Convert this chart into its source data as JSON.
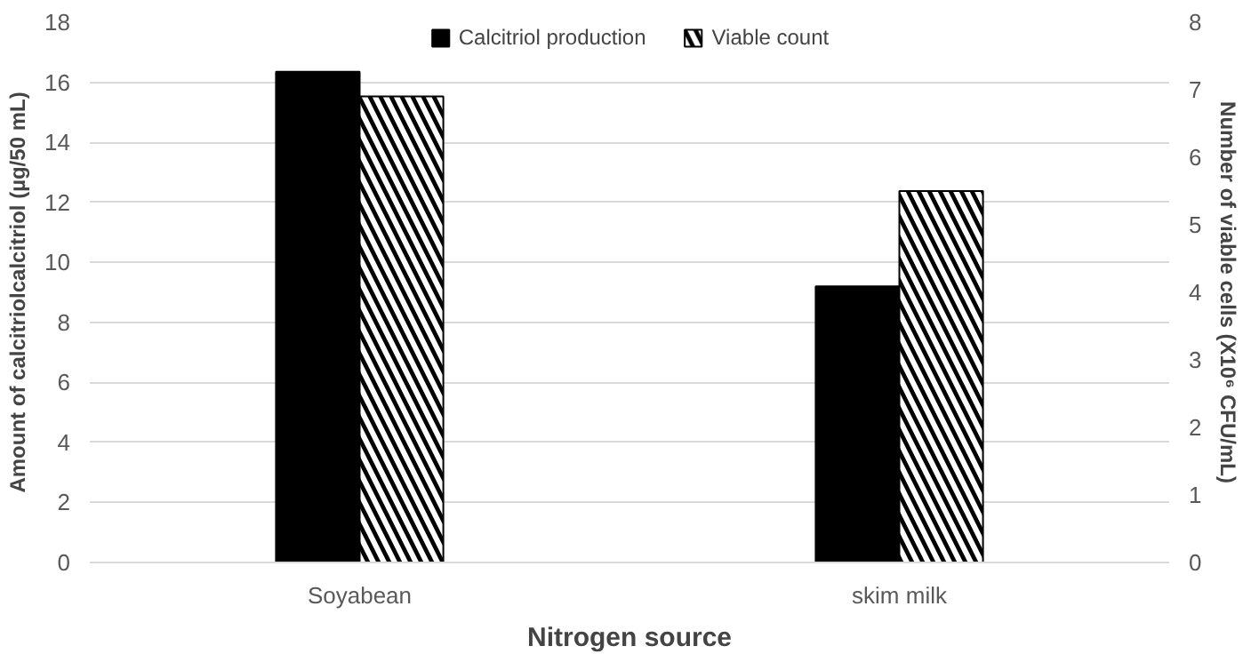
{
  "chart_data": {
    "type": "bar",
    "categories": [
      "Soyabean",
      "skim milk"
    ],
    "xlabel": "Nitrogen source",
    "ylabel": "Amount of calcitriolcalcitriol (µg/50 mL)",
    "y2label": "Number of viable cells (X10⁶ CFU/mL)",
    "series": [
      {
        "name": "Calcitriol production",
        "color": "#000000",
        "values": [
          16.35,
          9.2
        ]
      },
      {
        "name": "Viable count",
        "color": "#000000",
        "values": [
          6.9,
          5.5
        ],
        "axis": "y2"
      }
    ],
    "ylim": [
      0,
      18
    ],
    "yticks": [
      0,
      2,
      4,
      6,
      8,
      10,
      12,
      14,
      16,
      18
    ],
    "y2lim": [
      0,
      8
    ],
    "y2ticks": [
      0,
      1,
      2,
      3,
      4,
      5,
      6,
      7,
      8
    ],
    "grid": "y",
    "legend": "top"
  }
}
